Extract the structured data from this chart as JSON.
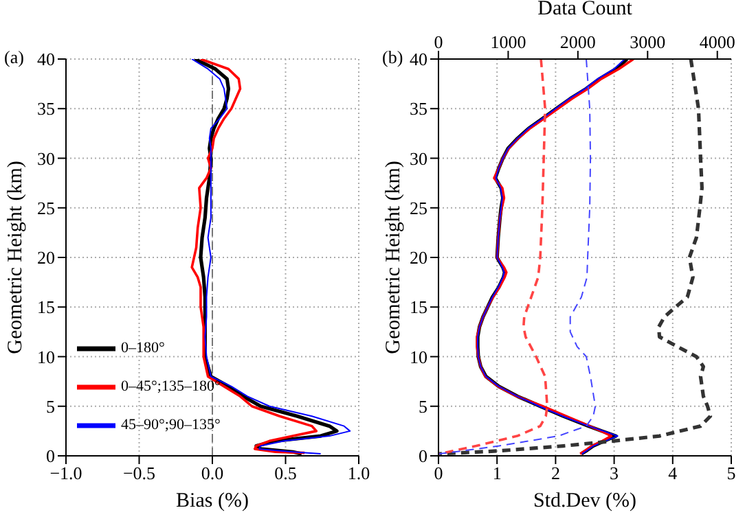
{
  "chart_data": [
    {
      "type": "line",
      "title": "(a)",
      "xlabel": "Bias (%)",
      "ylabel": "Geometric Height (km)",
      "xlim": [
        -1,
        1
      ],
      "xticks": [
        {
          "value": -1,
          "label": "−1.0"
        },
        {
          "value": -0.5,
          "label": "−0.5"
        },
        {
          "value": 0,
          "label": "0.0"
        },
        {
          "value": 0.5,
          "label": "0.5"
        },
        {
          "value": 1,
          "label": "1.0"
        }
      ],
      "ylim": [
        0,
        40
      ],
      "yticks": [
        0,
        5,
        10,
        15,
        20,
        25,
        30,
        35,
        40
      ],
      "grid": true,
      "legend": "bottom left",
      "ref_lines": [
        {
          "axis": "x",
          "value": 0,
          "color": "#777777",
          "line_style": "dashed"
        }
      ],
      "series": [
        {
          "name": "0–180°",
          "color": "#000000",
          "line_style": "solid",
          "x": [
            -0.12,
            0.02,
            0.1,
            0.11,
            0.1,
            0.08,
            0.04,
            0.01,
            -0.01,
            -0.02,
            -0.01,
            -0.02,
            -0.04,
            -0.05,
            -0.07,
            -0.08,
            -0.06,
            -0.05,
            -0.05,
            -0.05,
            -0.05,
            -0.01,
            0.11,
            0.21,
            0.33,
            0.58,
            0.8,
            0.85,
            0.74,
            0.43,
            0.3,
            0.33,
            0.55,
            0.61
          ],
          "values": [
            40,
            39,
            38,
            37,
            36,
            35,
            34,
            33,
            32,
            31,
            30,
            28,
            26,
            24,
            22,
            20,
            18,
            16,
            14,
            12,
            10,
            8,
            7,
            6,
            5,
            4,
            3,
            2.5,
            2,
            1.5,
            1,
            0.7,
            0.4,
            0.2
          ]
        },
        {
          "name": "0–45°;135–180°",
          "color": "#ff0000",
          "line_style": "solid",
          "x": [
            -0.08,
            0.11,
            0.18,
            0.19,
            0.16,
            0.13,
            0.08,
            0.04,
            0.01,
            0,
            -0.03,
            -0.01,
            -0.04,
            -0.09,
            -0.08,
            -0.1,
            -0.11,
            -0.14,
            -0.1,
            -0.08,
            -0.08,
            -0.06,
            -0.06,
            -0.03,
            0.08,
            0.19,
            0.27,
            0.46,
            0.68,
            0.71,
            0.55,
            0.39,
            0.3,
            0.29,
            0.43,
            0.63
          ],
          "values": [
            40,
            39,
            38,
            37,
            36,
            35,
            34,
            33,
            32,
            31,
            30,
            29,
            28,
            27,
            25,
            23,
            21,
            19,
            18,
            17,
            15,
            13,
            10,
            8,
            7,
            6,
            5,
            4,
            3,
            2.5,
            2,
            1.5,
            1,
            0.7,
            0.4,
            0.3
          ]
        },
        {
          "name": "45–90°;90–135°",
          "color": "#0000ff",
          "line_style": "solid",
          "x": [
            -0.14,
            -0.03,
            0.05,
            0.08,
            0.09,
            0.1,
            0.05,
            -0.01,
            -0.02,
            -0.01,
            -0.01,
            -0.01,
            -0.01,
            -0.01,
            -0.03,
            -0.01,
            -0.03,
            -0.04,
            -0.04,
            -0.05,
            -0.04,
            -0.01,
            0.13,
            0.24,
            0.39,
            0.68,
            0.9,
            0.94,
            0.8,
            0.49,
            0.33,
            0.32,
            0.55,
            0.74
          ],
          "values": [
            40,
            39,
            38,
            37,
            36,
            35,
            34,
            33,
            32,
            31,
            30,
            28,
            26,
            24,
            22,
            20,
            18,
            16,
            14,
            12,
            10,
            8,
            7,
            6,
            5,
            4,
            3,
            2.5,
            2,
            1.5,
            1,
            0.7,
            0.4,
            0.2
          ]
        }
      ]
    },
    {
      "type": "line",
      "title": "(b)",
      "xlabel": "Std.Dev (%)",
      "x2label": "Data Count",
      "ylabel": "Geometric Height (km)",
      "xlim": [
        0,
        5
      ],
      "xticks": [
        0,
        1,
        2,
        3,
        4,
        5
      ],
      "x2lim": [
        0,
        4200
      ],
      "x2ticks": [
        0,
        1000,
        2000,
        3000,
        4000
      ],
      "ylim": [
        0,
        40
      ],
      "yticks": [
        0,
        5,
        10,
        15,
        20,
        25,
        30,
        35,
        40
      ],
      "grid": true,
      "series": [
        {
          "color": "#000000",
          "line_style": "solid",
          "x": [
            3.22,
            3.03,
            2.75,
            2.52,
            2.25,
            2.01,
            1.78,
            1.54,
            1.35,
            1.19,
            1.1,
            1.03,
            0.97,
            1.07,
            1.1,
            1.07,
            1.05,
            1.02,
            1.0,
            1.1,
            1.13,
            1.11,
            1.03,
            0.92,
            0.84,
            0.76,
            0.7,
            0.67,
            0.67,
            0.68,
            0.72,
            0.81,
            1.03,
            1.35,
            1.74,
            2.13,
            2.56,
            2.79,
            3.03,
            2.83,
            2.64,
            2.52,
            2.44
          ],
          "values": [
            40,
            39,
            38,
            37,
            36,
            35,
            34,
            33,
            32,
            31,
            30,
            29,
            28,
            27,
            26,
            25,
            24,
            22,
            20,
            19,
            18.5,
            18,
            17,
            16,
            15,
            14,
            13,
            12,
            11,
            10,
            9,
            8,
            7,
            6,
            5,
            4,
            3,
            2.5,
            2,
            1.5,
            1,
            0.5,
            0.2
          ]
        },
        {
          "color": "#ff0000",
          "line_style": "solid",
          "x": [
            3.33,
            3.08,
            2.78,
            2.55,
            2.28,
            2.04,
            1.8,
            1.56,
            1.36,
            1.2,
            1.1,
            1.03,
            0.95,
            1.09,
            1.12,
            1.08,
            1.05,
            1.02,
            1.0,
            1.12,
            1.16,
            1.13,
            1.04,
            0.93,
            0.84,
            0.76,
            0.7,
            0.66,
            0.66,
            0.68,
            0.72,
            0.8,
            1.02,
            1.34,
            1.78,
            2.18,
            2.58,
            2.78,
            2.95,
            2.8,
            2.62,
            2.5,
            2.42
          ],
          "values": [
            40,
            39,
            38,
            37,
            36,
            35,
            34,
            33,
            32,
            31,
            30,
            29,
            28,
            27,
            26,
            25,
            24,
            22,
            20,
            19,
            18.5,
            18,
            17,
            16,
            15,
            14,
            13,
            12,
            11,
            10,
            9,
            8,
            7,
            6,
            5,
            4,
            3,
            2.5,
            2,
            1.5,
            1,
            0.5,
            0.2
          ]
        },
        {
          "color": "#0000ff",
          "line_style": "solid",
          "x": [
            3.18,
            3.0,
            2.72,
            2.5,
            2.23,
            2.0,
            1.77,
            1.53,
            1.35,
            1.19,
            1.1,
            1.03,
            0.98,
            1.06,
            1.09,
            1.07,
            1.05,
            1.02,
            1.0,
            1.09,
            1.12,
            1.1,
            1.02,
            0.92,
            0.84,
            0.76,
            0.7,
            0.67,
            0.67,
            0.68,
            0.72,
            0.81,
            1.03,
            1.35,
            1.72,
            2.12,
            2.56,
            2.82,
            3.06,
            2.85,
            2.65,
            2.53,
            2.45
          ],
          "values": [
            40,
            39,
            38,
            37,
            36,
            35,
            34,
            33,
            32,
            31,
            30,
            29,
            28,
            27,
            26,
            25,
            24,
            22,
            20,
            19,
            18.5,
            18,
            17,
            16,
            15,
            14,
            13,
            12,
            11,
            10,
            9,
            8,
            7,
            6,
            5,
            4,
            3,
            2.5,
            2,
            1.5,
            1,
            0.5,
            0.2
          ]
        },
        {
          "color": "#333333",
          "line_style": "dashed",
          "axis": "x2",
          "x": [
            3620,
            3730,
            3760,
            3780,
            3750,
            3700,
            3600,
            3650,
            3570,
            3400,
            3240,
            3160,
            3170,
            3430,
            3700,
            3800,
            3760,
            3800,
            3860,
            3900,
            3760,
            3170,
            2510,
            1790,
            870,
            10
          ],
          "values": [
            40,
            35,
            30,
            27,
            25,
            22,
            20,
            18,
            16,
            15,
            14,
            13,
            12,
            11,
            10,
            9,
            8,
            6,
            5,
            4,
            3,
            2,
            1.5,
            1,
            0.5,
            0.2
          ]
        },
        {
          "color": "#ff4444",
          "line_style": "dashed",
          "axis": "x2",
          "x": [
            1470,
            1530,
            1510,
            1490,
            1460,
            1430,
            1330,
            1230,
            1220,
            1250,
            1400,
            1530,
            1560,
            1540,
            1460,
            1130,
            540,
            210,
            10
          ],
          "values": [
            40,
            35,
            30,
            25,
            20,
            18,
            16,
            14,
            13,
            12,
            10,
            8,
            5,
            4,
            3,
            2,
            1,
            0.5,
            0.2
          ]
        },
        {
          "color": "#4444ff",
          "line_style": "dashed",
          "axis": "x2",
          "x": [
            2120,
            2170,
            2180,
            2170,
            2140,
            2130,
            2050,
            1890,
            1890,
            1990,
            2120,
            2180,
            2250,
            2220,
            2120,
            1720,
            870,
            340,
            10
          ],
          "values": [
            40,
            35,
            30,
            25,
            20,
            18,
            16,
            14,
            12.5,
            11,
            10,
            8,
            5,
            4,
            3,
            2,
            1,
            0.5,
            0.2
          ]
        }
      ]
    }
  ]
}
